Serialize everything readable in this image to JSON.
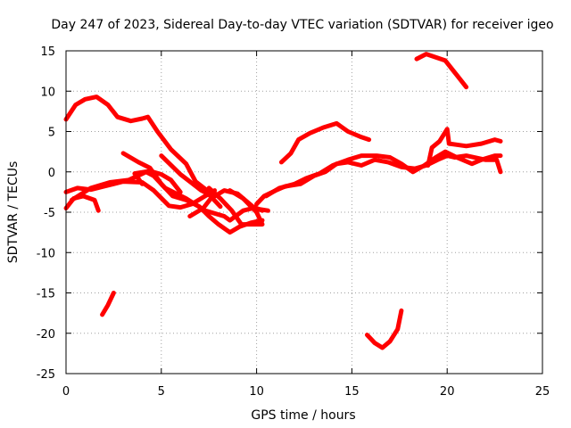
{
  "chart_data": {
    "type": "line",
    "title": "Day 247 of 2023, Sidereal Day-to-day VTEC variation (SDTVAR) for receiver igeo",
    "xlabel": "GPS time / hours",
    "ylabel": "SDTVAR / TECUs",
    "xlim": [
      0,
      25
    ],
    "ylim": [
      -25,
      15
    ],
    "xticks": [
      0,
      5,
      10,
      15,
      20,
      25
    ],
    "yticks": [
      -25,
      -20,
      -15,
      -10,
      -5,
      0,
      5,
      10,
      15
    ],
    "grid": true,
    "series_color": "#ff0000",
    "series": [
      {
        "name": "track-1",
        "points": [
          [
            0,
            6.5
          ],
          [
            0.5,
            8.3
          ],
          [
            1.0,
            9.0
          ],
          [
            1.6,
            9.3
          ],
          [
            2.2,
            8.3
          ],
          [
            2.7,
            6.8
          ],
          [
            3.4,
            6.3
          ],
          [
            4.0,
            6.6
          ],
          [
            4.3,
            6.8
          ],
          [
            4.8,
            5.0
          ],
          [
            5.5,
            2.8
          ],
          [
            6.3,
            1.0
          ],
          [
            6.8,
            -1.2
          ],
          [
            7.4,
            -2.3
          ],
          [
            7.9,
            -2.8
          ]
        ]
      },
      {
        "name": "track-2",
        "points": [
          [
            0,
            -4.5
          ],
          [
            0.4,
            -3.3
          ],
          [
            0.9,
            -3.0
          ],
          [
            1.5,
            -3.5
          ],
          [
            1.7,
            -4.8
          ]
        ]
      },
      {
        "name": "track-3",
        "points": [
          [
            0,
            -2.5
          ],
          [
            0.6,
            -2.0
          ],
          [
            1.3,
            -2.2
          ],
          [
            2.0,
            -1.8
          ],
          [
            3.0,
            -1.2
          ],
          [
            4.0,
            -1.3
          ],
          [
            4.6,
            -2.3
          ],
          [
            5.4,
            -4.2
          ],
          [
            6.0,
            -4.4
          ],
          [
            6.6,
            -4.0
          ],
          [
            7.3,
            -3.0
          ],
          [
            7.8,
            -2.3
          ]
        ]
      },
      {
        "name": "track-4",
        "points": [
          [
            0.3,
            -3.5
          ],
          [
            1.3,
            -2.0
          ],
          [
            2.3,
            -1.3
          ],
          [
            3.3,
            -1.0
          ],
          [
            4.2,
            0.0
          ],
          [
            4.6,
            -0.5
          ],
          [
            5.2,
            -2.0
          ],
          [
            6.3,
            -3.3
          ],
          [
            7.3,
            -4.8
          ],
          [
            8.3,
            -5.5
          ],
          [
            8.6,
            -6.0
          ],
          [
            9.3,
            -4.8
          ],
          [
            9.8,
            -4.5
          ],
          [
            10.6,
            -4.8
          ]
        ]
      },
      {
        "name": "track-5",
        "points": [
          [
            3.0,
            2.3
          ],
          [
            3.8,
            1.2
          ],
          [
            4.4,
            0.5
          ],
          [
            5.0,
            -1.5
          ],
          [
            5.6,
            -3.0
          ],
          [
            6.3,
            -3.5
          ],
          [
            7.0,
            -4.3
          ],
          [
            7.5,
            -5.5
          ],
          [
            8.0,
            -6.5
          ],
          [
            8.6,
            -7.5
          ],
          [
            9.1,
            -6.8
          ],
          [
            9.7,
            -6.3
          ],
          [
            10.3,
            -6.0
          ]
        ]
      },
      {
        "name": "track-6",
        "points": [
          [
            4.0,
            -1.5
          ],
          [
            3.6,
            -0.2
          ],
          [
            4.4,
            0.1
          ],
          [
            5.0,
            -0.3
          ],
          [
            5.5,
            -1.0
          ],
          [
            6.0,
            -2.5
          ]
        ]
      },
      {
        "name": "track-7",
        "points": [
          [
            5.0,
            2.0
          ],
          [
            6.0,
            -0.3
          ],
          [
            6.5,
            -1.2
          ],
          [
            7.1,
            -2.3
          ],
          [
            7.5,
            -2.8
          ],
          [
            8.1,
            -4.3
          ]
        ]
      },
      {
        "name": "track-8",
        "points": [
          [
            6.5,
            -5.5
          ],
          [
            7.2,
            -4.5
          ],
          [
            7.6,
            -3.3
          ],
          [
            8.3,
            -2.3
          ],
          [
            9.0,
            -2.7
          ],
          [
            9.8,
            -4.3
          ],
          [
            10.3,
            -4.8
          ]
        ]
      },
      {
        "name": "track-9",
        "points": [
          [
            7.5,
            -2.0
          ],
          [
            8.1,
            -3.3
          ],
          [
            8.7,
            -4.8
          ],
          [
            9.2,
            -6.5
          ],
          [
            10.3,
            -6.5
          ],
          [
            10.0,
            -5.0
          ],
          [
            9.3,
            -3.3
          ],
          [
            8.6,
            -2.3
          ]
        ]
      },
      {
        "name": "track-10",
        "points": [
          [
            10.0,
            -4.0
          ],
          [
            10.4,
            -3.0
          ],
          [
            11.0,
            -2.3
          ],
          [
            11.5,
            -1.8
          ],
          [
            12.3,
            -1.5
          ],
          [
            13.0,
            -0.5
          ],
          [
            13.6,
            0.0
          ],
          [
            14.2,
            1.0
          ],
          [
            14.8,
            1.2
          ],
          [
            15.5,
            0.8
          ],
          [
            16.2,
            1.5
          ],
          [
            16.9,
            1.2
          ],
          [
            17.6,
            0.6
          ],
          [
            18.3,
            0.4
          ],
          [
            18.9,
            0.8
          ],
          [
            19.5,
            1.5
          ],
          [
            20.0,
            2.0
          ],
          [
            20.4,
            1.8
          ],
          [
            21.0,
            2.0
          ],
          [
            22.0,
            1.5
          ],
          [
            22.6,
            1.5
          ],
          [
            22.8,
            0.0
          ]
        ]
      },
      {
        "name": "track-11",
        "points": [
          [
            10.5,
            -3.0
          ],
          [
            11.2,
            -2.0
          ],
          [
            12.0,
            -1.5
          ],
          [
            12.6,
            -0.8
          ],
          [
            13.3,
            -0.2
          ],
          [
            14.0,
            0.8
          ],
          [
            14.8,
            1.5
          ],
          [
            15.5,
            2.0
          ],
          [
            16.3,
            2.0
          ],
          [
            17.0,
            1.8
          ],
          [
            17.6,
            1.0
          ],
          [
            18.2,
            0.0
          ],
          [
            18.8,
            0.8
          ],
          [
            19.4,
            1.8
          ],
          [
            19.9,
            2.5
          ],
          [
            20.5,
            1.8
          ],
          [
            21.3,
            1.0
          ],
          [
            21.8,
            1.5
          ],
          [
            22.5,
            2.0
          ],
          [
            22.8,
            2.0
          ]
        ]
      },
      {
        "name": "track-12",
        "points": [
          [
            11.3,
            1.2
          ],
          [
            11.8,
            2.3
          ],
          [
            12.2,
            4.0
          ],
          [
            12.8,
            4.8
          ],
          [
            13.5,
            5.5
          ],
          [
            14.2,
            6.0
          ],
          [
            14.8,
            5.0
          ],
          [
            15.5,
            4.3
          ],
          [
            15.9,
            4.0
          ]
        ]
      },
      {
        "name": "track-13",
        "points": [
          [
            19.0,
            0.8
          ],
          [
            19.2,
            3.0
          ],
          [
            19.6,
            3.8
          ],
          [
            20.0,
            5.3
          ],
          [
            20.1,
            3.5
          ],
          [
            21.0,
            3.2
          ],
          [
            21.8,
            3.5
          ],
          [
            22.5,
            4.0
          ],
          [
            22.8,
            3.8
          ]
        ]
      },
      {
        "name": "track-14",
        "points": [
          [
            18.4,
            14.0
          ],
          [
            18.9,
            14.6
          ],
          [
            19.4,
            14.2
          ],
          [
            19.9,
            13.8
          ],
          [
            20.5,
            12.0
          ],
          [
            21.0,
            10.5
          ]
        ]
      },
      {
        "name": "track-15",
        "points": [
          [
            1.9,
            -17.7
          ],
          [
            2.2,
            -16.5
          ],
          [
            2.5,
            -15.0
          ]
        ]
      },
      {
        "name": "track-16",
        "points": [
          [
            15.8,
            -20.2
          ],
          [
            16.2,
            -21.2
          ],
          [
            16.6,
            -21.8
          ],
          [
            17.0,
            -21.0
          ],
          [
            17.4,
            -19.5
          ],
          [
            17.6,
            -17.2
          ]
        ]
      }
    ]
  }
}
